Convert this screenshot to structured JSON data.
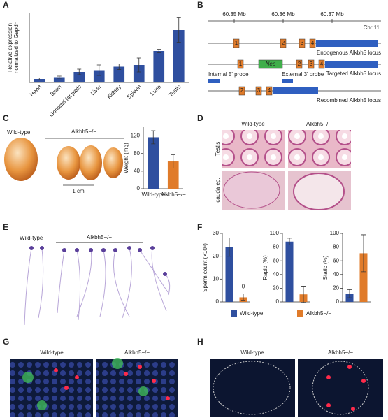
{
  "panel_labels": [
    "A",
    "B",
    "C",
    "D",
    "E",
    "F",
    "G",
    "H"
  ],
  "chart_data": [
    {
      "type": "bar",
      "y_label": [
        "Relative expression",
        "normalized to Gapdh"
      ],
      "categories": [
        "Heart",
        "Brain",
        "Gonadal fat pads",
        "Liver",
        "Kidney",
        "Spleen",
        "Lung",
        "Testis"
      ],
      "values": [
        1,
        1.5,
        3,
        3.5,
        4.5,
        5,
        9,
        15
      ],
      "errors": [
        0.3,
        0.3,
        0.8,
        1.5,
        0.8,
        2,
        0.5,
        3.5
      ],
      "colors": [
        "#2f4f9f",
        "#2f4f9f",
        "#2f4f9f",
        "#2f4f9f",
        "#2f4f9f",
        "#2f4f9f",
        "#2f4f9f",
        "#2f4f9f"
      ],
      "ylim": [
        0,
        20
      ]
    },
    {
      "type": "bar",
      "y_label": [
        "Weight (mg)"
      ],
      "categories": [
        "Wild-type",
        "Alkbh5−/−"
      ],
      "values": [
        117,
        62
      ],
      "errors": [
        15,
        15
      ],
      "colors": [
        "#2f4f9f",
        "#e07b2a"
      ],
      "ylim": [
        0,
        140
      ],
      "yticks": [
        0,
        40,
        80,
        120
      ]
    },
    {
      "type": "bar",
      "y_label": [
        "Sperm count (×10⁶)"
      ],
      "categories": [
        null,
        null
      ],
      "values": [
        24,
        2
      ],
      "errors": [
        4,
        1.5
      ],
      "colors": [
        "#2f4f9f",
        "#e07b2a"
      ],
      "ylim": [
        0,
        30
      ],
      "yticks": [
        0,
        10,
        20,
        30
      ],
      "annotation": "0"
    },
    {
      "type": "bar",
      "y_label": [
        "Rapid (%)"
      ],
      "categories": [
        null,
        null
      ],
      "values": [
        88,
        11
      ],
      "errors": [
        5,
        12
      ],
      "colors": [
        "#2f4f9f",
        "#e07b2a"
      ],
      "ylim": [
        0,
        100
      ],
      "yticks": [
        0,
        20,
        40,
        60,
        80,
        100
      ]
    },
    {
      "type": "bar",
      "y_label": [
        "Static (%)"
      ],
      "categories": [
        null,
        null
      ],
      "values": [
        12,
        71
      ],
      "errors": [
        6,
        27
      ],
      "colors": [
        "#2f4f9f",
        "#e07b2a"
      ],
      "ylim": [
        0,
        100
      ],
      "yticks": [
        0,
        20,
        40,
        60,
        80,
        100
      ]
    }
  ],
  "legend": [
    {
      "name": "Wild-type",
      "color": "#2f4f9f"
    },
    {
      "name": "Alkbh5−/−",
      "color": "#e07b2a"
    }
  ],
  "diagram": {
    "positions": [
      "60.35 Mb",
      "60.36 Mb",
      "60.37 Mb"
    ],
    "chromosome": "Chr 11",
    "exons": [
      "1",
      "2",
      "3",
      "4"
    ],
    "cassette": "Neo",
    "loci": [
      "Endogenous Alkbh5 locus",
      "Targeted Alkbh5 locus",
      "Recombined Alkbh5 locus"
    ],
    "probes": [
      "Internal 5' probe",
      "External 3' probe"
    ]
  },
  "photo_c": {
    "wild_type": "Wild-type",
    "knockout": "Alkbh5−/−",
    "scale": "1 cm"
  },
  "histology_d": {
    "columns": [
      "Wild-type",
      "Alkbh5−/−"
    ],
    "rows": [
      "Testis",
      "cauda ep."
    ]
  },
  "sperm_e": {
    "wild_type": "Wild-type",
    "knockout": "Alkbh5−/−"
  },
  "fluorescence_g": {
    "columns": [
      "Wild-type",
      "Alkbh5−/−"
    ]
  },
  "fluorescence_h": {
    "columns": [
      "Wild-type",
      "Alkbh5−/−"
    ]
  }
}
